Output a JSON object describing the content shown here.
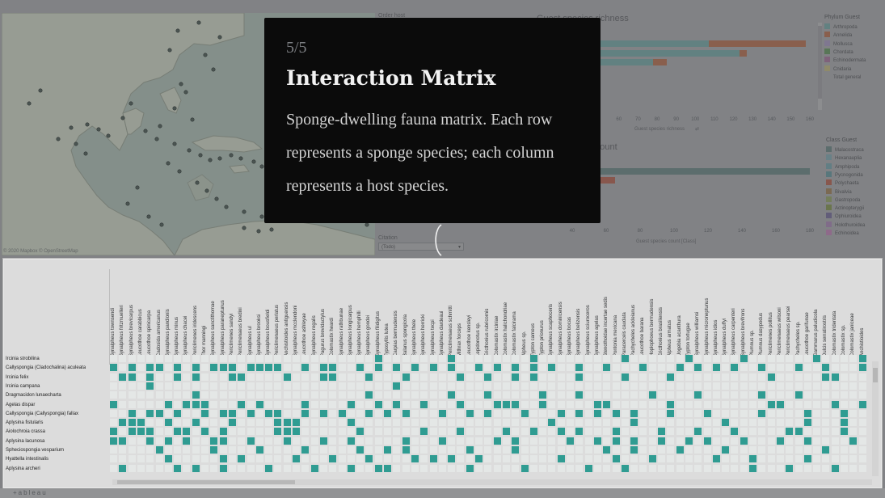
{
  "filters": {
    "order_host_label": "Order host",
    "citation_label": "Citation",
    "citation_value": "(Todo)"
  },
  "chart_data": [
    {
      "type": "bar",
      "title": "Guest species richness",
      "xlabel": "Guest species richness",
      "xlim": [
        0,
        160
      ],
      "xticks": [
        60,
        70,
        80,
        90,
        100,
        110,
        120,
        130,
        140,
        150,
        160
      ],
      "series": [
        {
          "name": "Arthropoda",
          "values": [
            107,
            123,
            78
          ]
        },
        {
          "name": "Annelida",
          "values": [
            158,
            127,
            85
          ]
        }
      ]
    },
    {
      "type": "bar",
      "title": "Guest species count",
      "xlabel": "Guest species count [Class]",
      "xlim": [
        0,
        180
      ],
      "xticks": [
        40,
        60,
        80,
        100,
        120,
        140,
        160,
        180
      ],
      "series": [
        {
          "name": "Malacostraca",
          "values": [
            180
          ]
        },
        {
          "name": "Polychaeta",
          "values": [
            65
          ]
        }
      ]
    }
  ],
  "legend_phylum": {
    "title": "Phylum Guest",
    "items": [
      {
        "label": "Arthropoda",
        "color": "#5f8f8e"
      },
      {
        "label": "Annelida",
        "color": "#9b5a3c"
      },
      {
        "label": "Mollusca",
        "color": "#8b7fa4"
      },
      {
        "label": "Chordata",
        "color": "#4f7d4c"
      },
      {
        "label": "Echinodermata",
        "color": "#8b5e84"
      },
      {
        "label": "Cnidaria",
        "color": "#a49d6a"
      },
      {
        "label": "Total general",
        "color": ""
      }
    ]
  },
  "legend_class": {
    "title": "Class Guest",
    "items": [
      {
        "label": "Malacostraca",
        "color": "#55706e"
      },
      {
        "label": "Hexanauplia",
        "color": "#6a8f96"
      },
      {
        "label": "Amphipoda",
        "color": "#5e8a92"
      },
      {
        "label": "Pycnogonida",
        "color": "#4f7f86"
      },
      {
        "label": "Polychaeta",
        "color": "#9a4e3c"
      },
      {
        "label": "Bivalvia",
        "color": "#866a44"
      },
      {
        "label": "Gastropoda",
        "color": "#7b8a52"
      },
      {
        "label": "Actinopterygii",
        "color": "#6b7c3c"
      },
      {
        "label": "Ophiuroidea",
        "color": "#5e5680"
      },
      {
        "label": "Holothuroidea",
        "color": "#8e6e9a"
      },
      {
        "label": "Echinoidea",
        "color": "#a36b9b"
      }
    ]
  },
  "map": {
    "credit": "© 2020 Mapbox  © OpenStreetMap"
  },
  "story": {
    "step": "5/5",
    "title": "Interaction Matrix",
    "body": "Sponge-dwelling fauna matrix. Each row represents a sponge species; each column represents a host species."
  },
  "matrix": {
    "columns": [
      "Synalpheus townsendi",
      "Synalpheus fritzmuelleri",
      "Synalpheus brevicarpus",
      "Leucothoe carabbicus",
      "Leucothoe spinicarpa",
      "Cadosida americanus",
      "Synalpheus pandionis",
      "Synalpheus minus",
      "Synalpheus chacei",
      "Periclimenes iridescens",
      "Thor manningi",
      "Synalpheus sanctithomae",
      "Synalpheus paraneptunus",
      "Periclimenes sandyi",
      "Periclimenaeus bredini",
      "Synalpheus ul",
      "Synalpheus brooksi",
      "Synalpheus bousfieldi",
      "Periclimenaeus perlatus",
      "Anchistioides antiguensis",
      "Synalpheus mcclendoni",
      "Leucothoe ashleyae",
      "Synalpheus regalis",
      "Pagurus brevidactylus",
      "Colomastix heardi",
      "Synalpheus rathbunae",
      "Synalpheus longicarpus",
      "Synalpheus hemphilli",
      "Synalpheus goodei",
      "Synalpheus filidigitus",
      "Typosyllis lutea",
      "Carpias bermudensis",
      "Balanus spongicola",
      "Synalpheus thele",
      "Synalpheus herricki",
      "Synalpheus tecpi",
      "Synalpheus dardeaui",
      "Periclimenaeus schmitti",
      "Mithrax forceps",
      "Leucothoe kensleyi",
      "Lepidonotus sp.",
      "Ericthonius rubricornis",
      "Colomastix irciniae",
      "Colomastix halichondriae",
      "Colomastix falcirama",
      "Alpheus sp.",
      "Typton carneus",
      "Typton prionurus",
      "Synalpheus scaphoceris",
      "Synalpheus dominicensis",
      "Synalpheus bocas",
      "Synalpheus belizensis",
      "Synalpheus sciuroceros",
      "Synalpheus agelas",
      "Stenothoidae incertae sedis",
      "Pontonia mexicana",
      "Paracerceis caudata",
      "Pachycheles ackleianus",
      "Leucothoe barana",
      "Hoplophoeus bermudensis",
      "Ericthonius brasiliensis",
      "Alpheus armatus",
      "Uogebia acanthura",
      "Typton tortugae",
      "Synalpheus williamsi",
      "Synalpheus microneptunus",
      "Synalpheus idios",
      "Synalpheus duffyi",
      "Synalpheus carpenteri",
      "Synalpheus brevifrons",
      "Plumnus sp.",
      "Plumnus dasypodus",
      "Periclimenes pollitus",
      "Periclimenaeus wilsoni",
      "Periclimenaeus pearsei",
      "Pachycheles sp.",
      "Leucothoe garifunae",
      "Gammarus paludicola",
      "Dulcis serratirostris",
      "Colomastix tridentata",
      "Colomastix sp.",
      "Colomastix janiceae",
      "Anchistioides"
    ],
    "rows": [
      "Ircinia strobilina",
      "Callyspongia (Cladochalina) aculeata",
      "Ircinia felix",
      "Ircinia campana",
      "Dragmacidon lunaecharta",
      "Agelas dispar",
      "Callyspongia (Callyspongia) fallax",
      "Aplysina fistularis",
      "Aiolochroia crassa",
      "Aplysina lacunosa",
      "Spheciospongia vesparium",
      "Hyattella intestinalis",
      "Aplysina archeri"
    ]
  }
}
